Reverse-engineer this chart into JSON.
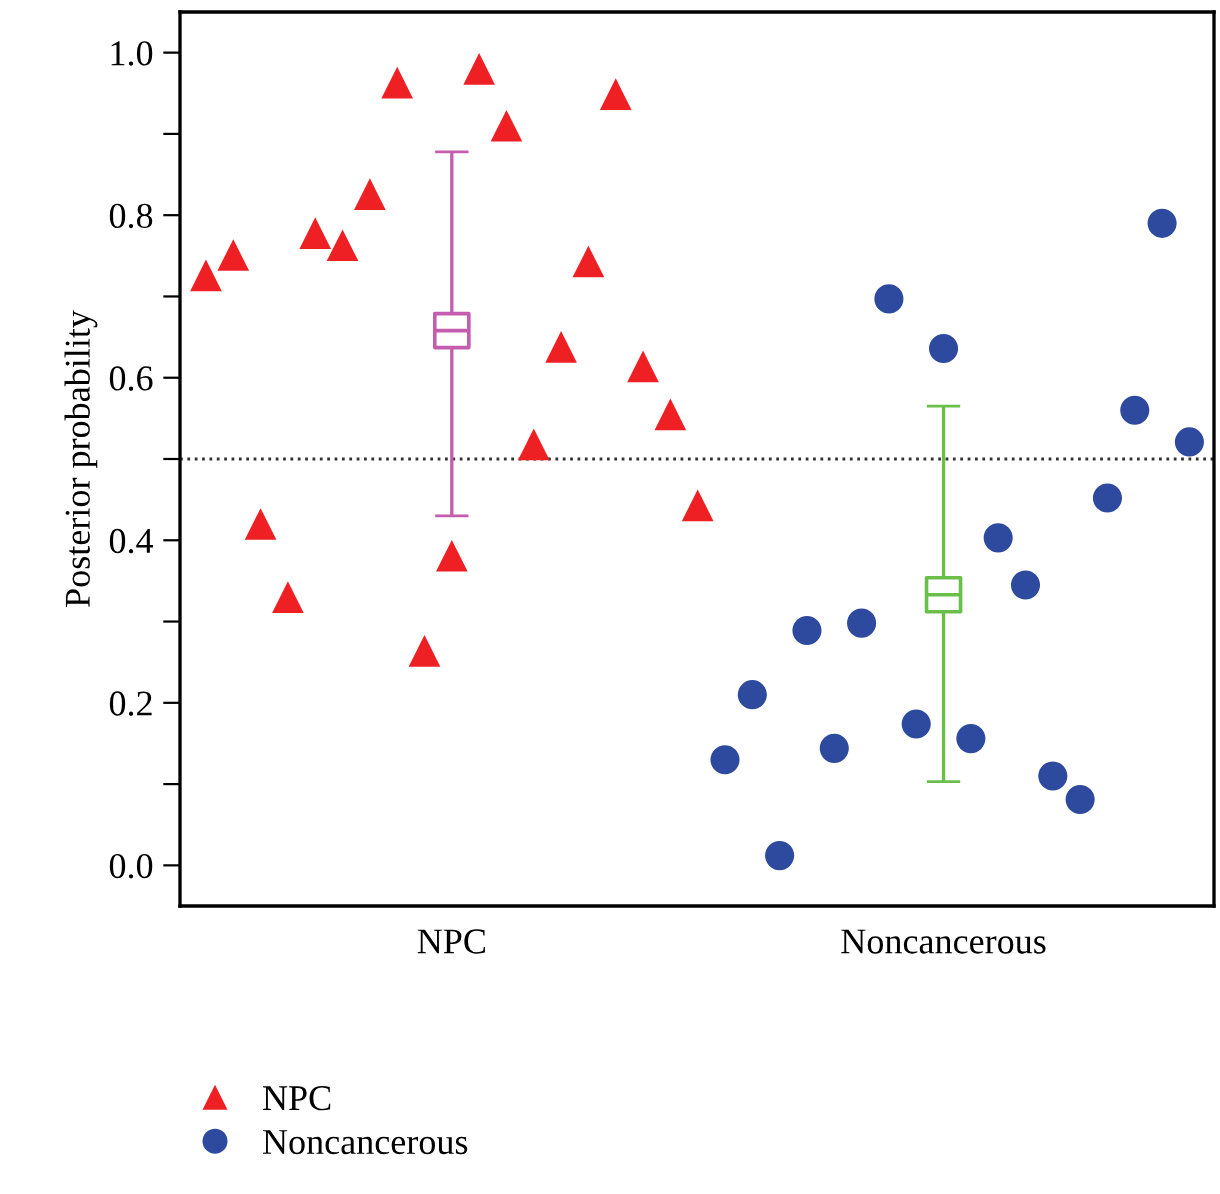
{
  "chart_data": {
    "type": "scatter",
    "ylabel": "Posterior probability",
    "categories": [
      null,
      null,
      null,
      null,
      null,
      null,
      null,
      null,
      null,
      "NPC",
      null,
      null,
      null,
      null,
      null,
      null,
      null,
      null,
      null,
      null,
      null,
      null,
      null,
      null,
      null,
      null,
      null,
      "Noncancerous",
      null,
      null,
      null,
      null,
      null,
      null,
      null,
      null,
      null
    ],
    "ylim": [
      -0.05,
      1.05
    ],
    "yticks": [
      {
        "value": 0,
        "label": "0.0"
      },
      {
        "value": 0.1,
        "label": null
      },
      {
        "value": 0.2,
        "label": "0.2"
      },
      {
        "value": 0.3,
        "label": null
      },
      {
        "value": 0.4,
        "label": "0.4"
      },
      {
        "value": 0.5,
        "label": null
      },
      {
        "value": 0.6,
        "label": "0.6"
      },
      {
        "value": 0.7,
        "label": null
      },
      {
        "value": 0.8,
        "label": "0.8"
      },
      {
        "value": 0.9,
        "label": null
      },
      {
        "value": 1.0,
        "label": "1.0"
      }
    ],
    "grid": false,
    "legend": "bottom left",
    "ref_lines": [
      {
        "axis": "y",
        "value": 0.5,
        "line_style": "dotted",
        "color": "#333333"
      }
    ],
    "series": [
      {
        "name": "NPC",
        "color": "#ee2024",
        "marker": "triangle",
        "values": [
          0.726,
          0.751,
          0.42,
          0.33,
          0.778,
          0.763,
          0.826,
          0.963,
          0.264,
          0.381,
          0.98,
          0.91,
          0.518,
          0.638,
          0.743,
          0.949,
          0.614,
          0.555,
          0.443,
          null,
          null,
          null,
          null,
          null,
          null,
          null,
          null,
          null,
          null,
          null,
          null,
          null,
          null,
          null,
          null,
          null,
          null
        ]
      },
      {
        "name": "Noncancerous",
        "color": "#2e4a9e",
        "marker": "circle",
        "values": [
          null,
          null,
          null,
          null,
          null,
          null,
          null,
          null,
          null,
          null,
          null,
          null,
          null,
          null,
          null,
          null,
          null,
          null,
          null,
          0.13,
          0.21,
          0.012,
          0.289,
          0.144,
          0.298,
          0.697,
          0.174,
          0.636,
          0.156,
          0.403,
          0.345,
          0.11,
          0.081,
          0.452,
          0.56,
          0.79,
          0.521
        ]
      },
      {
        "color": "#c45db0",
        "values": [
          null,
          null,
          null,
          null,
          null,
          null,
          null,
          null,
          null,
          0.658,
          null,
          null,
          null,
          null,
          null,
          null,
          null,
          null,
          null,
          null,
          null,
          null,
          null,
          null,
          null,
          null,
          null,
          null,
          null,
          null,
          null,
          null,
          null,
          null,
          null,
          null,
          null
        ],
        "errors": [
          null,
          null,
          null,
          null,
          null,
          null,
          null,
          null,
          null,
          [
            0.43,
            0.878
          ],
          null,
          null,
          null,
          null,
          null,
          null,
          null,
          null,
          null,
          null,
          null,
          null,
          null,
          null,
          null,
          null,
          null,
          null,
          null,
          null,
          null,
          null,
          null,
          null,
          null,
          null,
          null
        ]
      },
      {
        "color": "#6abf4b",
        "values": [
          null,
          null,
          null,
          null,
          null,
          null,
          null,
          null,
          null,
          null,
          null,
          null,
          null,
          null,
          null,
          null,
          null,
          null,
          null,
          null,
          null,
          null,
          null,
          null,
          null,
          null,
          null,
          0.333,
          null,
          null,
          null,
          null,
          null,
          null,
          null,
          null,
          null
        ],
        "errors": [
          null,
          null,
          null,
          null,
          null,
          null,
          null,
          null,
          null,
          null,
          null,
          null,
          null,
          null,
          null,
          null,
          null,
          null,
          null,
          null,
          null,
          null,
          null,
          null,
          null,
          null,
          null,
          [
            0.103,
            0.565
          ],
          null,
          null,
          null,
          null,
          null,
          null,
          null,
          null,
          null
        ]
      }
    ]
  }
}
